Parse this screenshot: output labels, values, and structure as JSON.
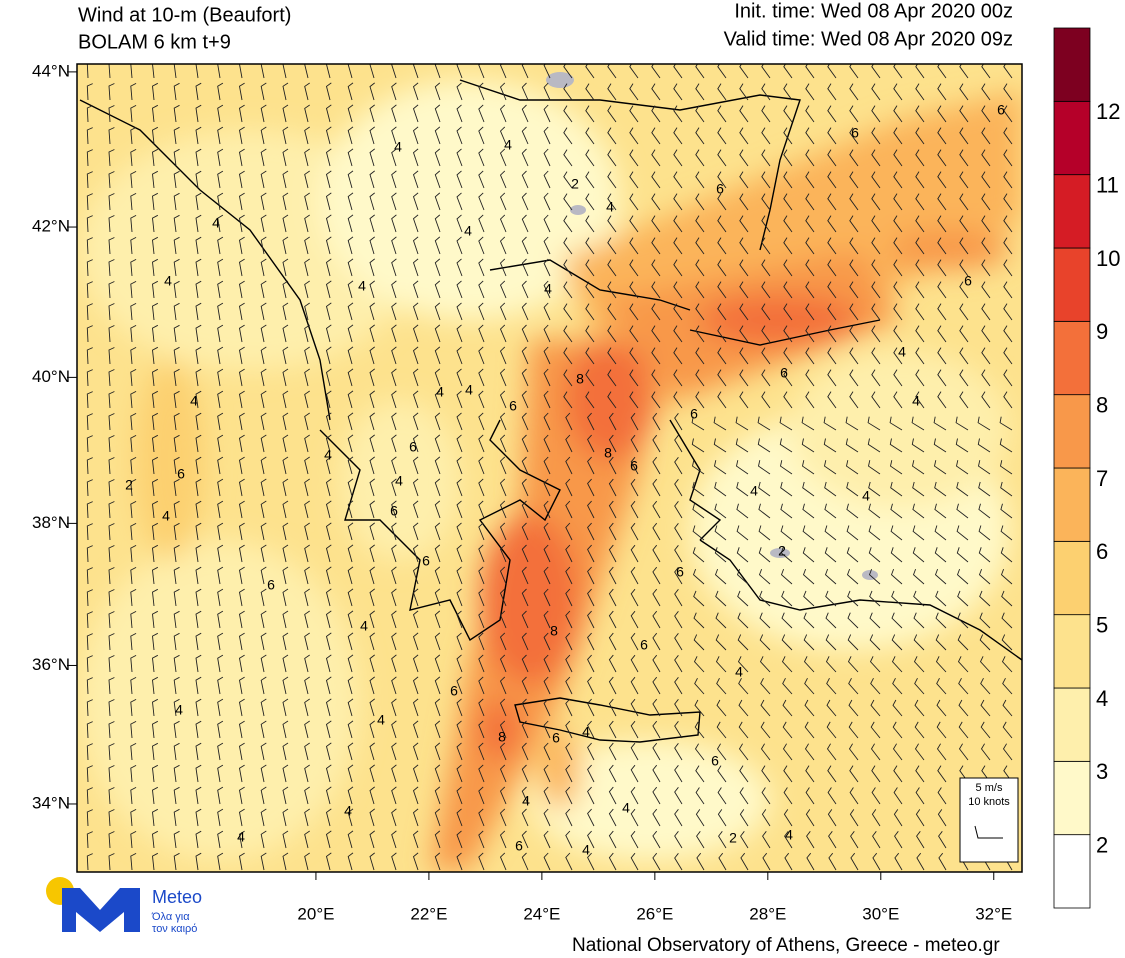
{
  "chart_data": {
    "type": "map",
    "title": "Wind at 10-m (Beaufort)",
    "subtitle": "BOLAM 6 km t+9",
    "init_time": "Init. time: Wed 08 Apr 2020 00z",
    "valid_time": "Valid time: Wed 08 Apr 2020 09z",
    "xlim": [
      15.77,
      32.5
    ],
    "ylim": [
      33.0,
      44.1
    ],
    "xticks": [
      {
        "value": 20,
        "label": "20°E"
      },
      {
        "value": 22,
        "label": "22°E"
      },
      {
        "value": 24,
        "label": "24°E"
      },
      {
        "value": 26,
        "label": "26°E"
      },
      {
        "value": 28,
        "label": "28°E"
      },
      {
        "value": 30,
        "label": "30°E"
      },
      {
        "value": 32,
        "label": "32°E"
      }
    ],
    "yticks": [
      {
        "value": 34,
        "label": "34°N"
      },
      {
        "value": 36,
        "label": "36°N"
      },
      {
        "value": 38,
        "label": "38°N"
      },
      {
        "value": 40,
        "label": "40°N"
      },
      {
        "value": 42,
        "label": "42°N"
      },
      {
        "value": 44,
        "label": "44°N"
      }
    ],
    "colorbar": {
      "levels": [
        2,
        3,
        4,
        5,
        6,
        7,
        8,
        9,
        10,
        11,
        12
      ],
      "colors": [
        "#ffffff",
        "#fff9c9",
        "#feefac",
        "#fde28d",
        "#fcd070",
        "#fbb45a",
        "#f8984a",
        "#f3703a",
        "#e8432b",
        "#d51c25",
        "#b50029",
        "#7d0020"
      ]
    },
    "contour_labels": [
      4,
      4,
      2,
      4,
      6,
      6,
      6,
      4,
      4,
      4,
      4,
      4,
      6,
      4,
      6,
      4,
      4,
      4,
      8,
      6,
      4,
      6,
      8,
      6,
      6,
      2,
      4,
      6,
      4,
      4,
      4,
      4,
      6,
      2,
      6,
      6,
      6,
      4,
      8,
      6,
      4,
      6,
      4,
      4,
      8,
      6,
      4,
      6,
      4,
      4,
      4,
      2,
      4,
      4,
      6,
      4
    ],
    "barb_legend": {
      "speed": "5 m/s",
      "knots": "10 knots"
    },
    "logo": {
      "name": "Meteo",
      "tagline_1": "Όλα για",
      "tagline_2": "τον καιρό"
    },
    "footer": "National Observatory of Athens, Greece - meteo.gr"
  }
}
